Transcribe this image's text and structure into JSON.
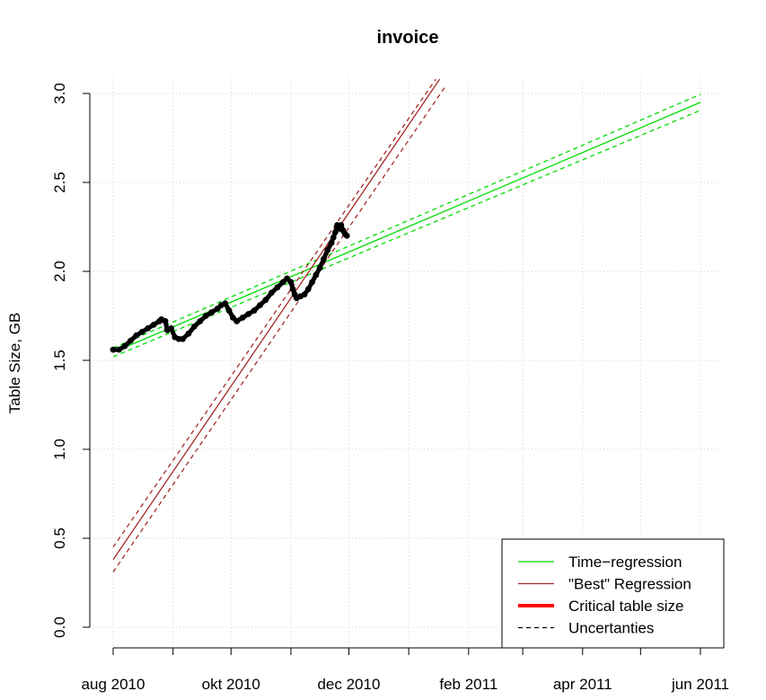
{
  "chart_data": {
    "type": "line",
    "title": "invoice",
    "xlabel": "",
    "ylabel": "Table Size, GB",
    "x_ticks": [
      "aug 2010",
      "okt 2010",
      "dec 2010",
      "feb 2011",
      "apr 2011",
      "jun 2011"
    ],
    "x_tick_dates": [
      "2010-08-01",
      "2010-09-01",
      "2010-10-01",
      "2010-11-01",
      "2010-12-01",
      "2011-01-01",
      "2011-02-01",
      "2011-03-01",
      "2011-04-01",
      "2011-05-01",
      "2011-06-01"
    ],
    "x_tick_labeled": [
      true,
      false,
      true,
      false,
      true,
      false,
      true,
      false,
      true,
      false,
      true
    ],
    "xlim": [
      "2010-08-01",
      "2011-06-01"
    ],
    "ylim": [
      0.0,
      3.0
    ],
    "y_ticks": [
      "0.0",
      "0.5",
      "1.0",
      "1.5",
      "2.0",
      "2.5",
      "3.0"
    ],
    "grid": true,
    "legend": {
      "position": "bottom-right",
      "entries": [
        "Time−regression",
        "\"Best\" Regression",
        "Critical table size",
        "Uncertanties"
      ]
    },
    "series": [
      {
        "name": "",
        "kind": "observed",
        "color": "#000000",
        "points": [
          [
            "2010-08-01",
            1.56
          ],
          [
            "2010-08-04",
            1.56
          ],
          [
            "2010-08-07",
            1.58
          ],
          [
            "2010-08-10",
            1.61
          ],
          [
            "2010-08-13",
            1.64
          ],
          [
            "2010-08-16",
            1.66
          ],
          [
            "2010-08-19",
            1.68
          ],
          [
            "2010-08-22",
            1.7
          ],
          [
            "2010-08-25",
            1.72
          ],
          [
            "2010-08-26",
            1.73
          ],
          [
            "2010-08-28",
            1.72
          ],
          [
            "2010-08-29",
            1.67
          ],
          [
            "2010-08-31",
            1.68
          ],
          [
            "2010-09-02",
            1.63
          ],
          [
            "2010-09-04",
            1.62
          ],
          [
            "2010-09-06",
            1.62
          ],
          [
            "2010-09-09",
            1.65
          ],
          [
            "2010-09-12",
            1.69
          ],
          [
            "2010-09-15",
            1.72
          ],
          [
            "2010-09-18",
            1.75
          ],
          [
            "2010-09-21",
            1.77
          ],
          [
            "2010-09-24",
            1.79
          ],
          [
            "2010-09-26",
            1.81
          ],
          [
            "2010-09-28",
            1.82
          ],
          [
            "2010-09-30",
            1.78
          ],
          [
            "2010-10-02",
            1.74
          ],
          [
            "2010-10-04",
            1.72
          ],
          [
            "2010-10-07",
            1.74
          ],
          [
            "2010-10-10",
            1.76
          ],
          [
            "2010-10-13",
            1.78
          ],
          [
            "2010-10-16",
            1.81
          ],
          [
            "2010-10-19",
            1.84
          ],
          [
            "2010-10-22",
            1.88
          ],
          [
            "2010-10-25",
            1.91
          ],
          [
            "2010-10-28",
            1.94
          ],
          [
            "2010-10-30",
            1.96
          ],
          [
            "2010-11-01",
            1.94
          ],
          [
            "2010-11-02",
            1.9
          ],
          [
            "2010-11-03",
            1.87
          ],
          [
            "2010-11-04",
            1.85
          ],
          [
            "2010-11-06",
            1.86
          ],
          [
            "2010-11-08",
            1.87
          ],
          [
            "2010-11-10",
            1.9
          ],
          [
            "2010-11-12",
            1.94
          ],
          [
            "2010-11-14",
            1.98
          ],
          [
            "2010-11-16",
            2.02
          ],
          [
            "2010-11-18",
            2.07
          ],
          [
            "2010-11-20",
            2.12
          ],
          [
            "2010-11-22",
            2.16
          ],
          [
            "2010-11-23",
            2.19
          ],
          [
            "2010-11-24",
            2.22
          ],
          [
            "2010-11-25",
            2.26
          ],
          [
            "2010-11-26",
            2.24
          ],
          [
            "2010-11-27",
            2.26
          ],
          [
            "2010-11-28",
            2.23
          ],
          [
            "2010-11-29",
            2.21
          ],
          [
            "2010-11-30",
            2.2
          ]
        ]
      },
      {
        "name": "Time−regression",
        "kind": "fit",
        "color": "#00dd00",
        "points": [
          [
            "2010-08-01",
            1.545
          ],
          [
            "2011-06-01",
            2.95
          ]
        ]
      },
      {
        "name": "Uncertanties",
        "kind": "band",
        "color": "#00dd00",
        "points": [
          [
            "2010-08-01",
            1.57
          ],
          [
            "2011-06-01",
            2.995
          ]
        ]
      },
      {
        "name": "Uncertanties",
        "kind": "band",
        "color": "#00dd00",
        "points": [
          [
            "2010-08-01",
            1.52
          ],
          [
            "2011-06-01",
            2.905
          ]
        ]
      },
      {
        "name": "\"Best\" Regression",
        "kind": "fit",
        "color": "#a52a2a",
        "points": [
          [
            "2010-08-01",
            0.38
          ],
          [
            "2011-01-17",
            3.08
          ]
        ]
      },
      {
        "name": "Uncertanties",
        "kind": "band",
        "color": "#a52a2a",
        "points": [
          [
            "2010-08-01",
            0.45
          ],
          [
            "2011-01-15",
            3.08
          ]
        ]
      },
      {
        "name": "Uncertanties",
        "kind": "band",
        "color": "#a52a2a",
        "points": [
          [
            "2010-08-01",
            0.31
          ],
          [
            "2011-01-20",
            3.04
          ]
        ]
      }
    ],
    "legend_colors": [
      "#00dd00",
      "#a52a2a",
      "#ff0000",
      "#000000"
    ]
  }
}
